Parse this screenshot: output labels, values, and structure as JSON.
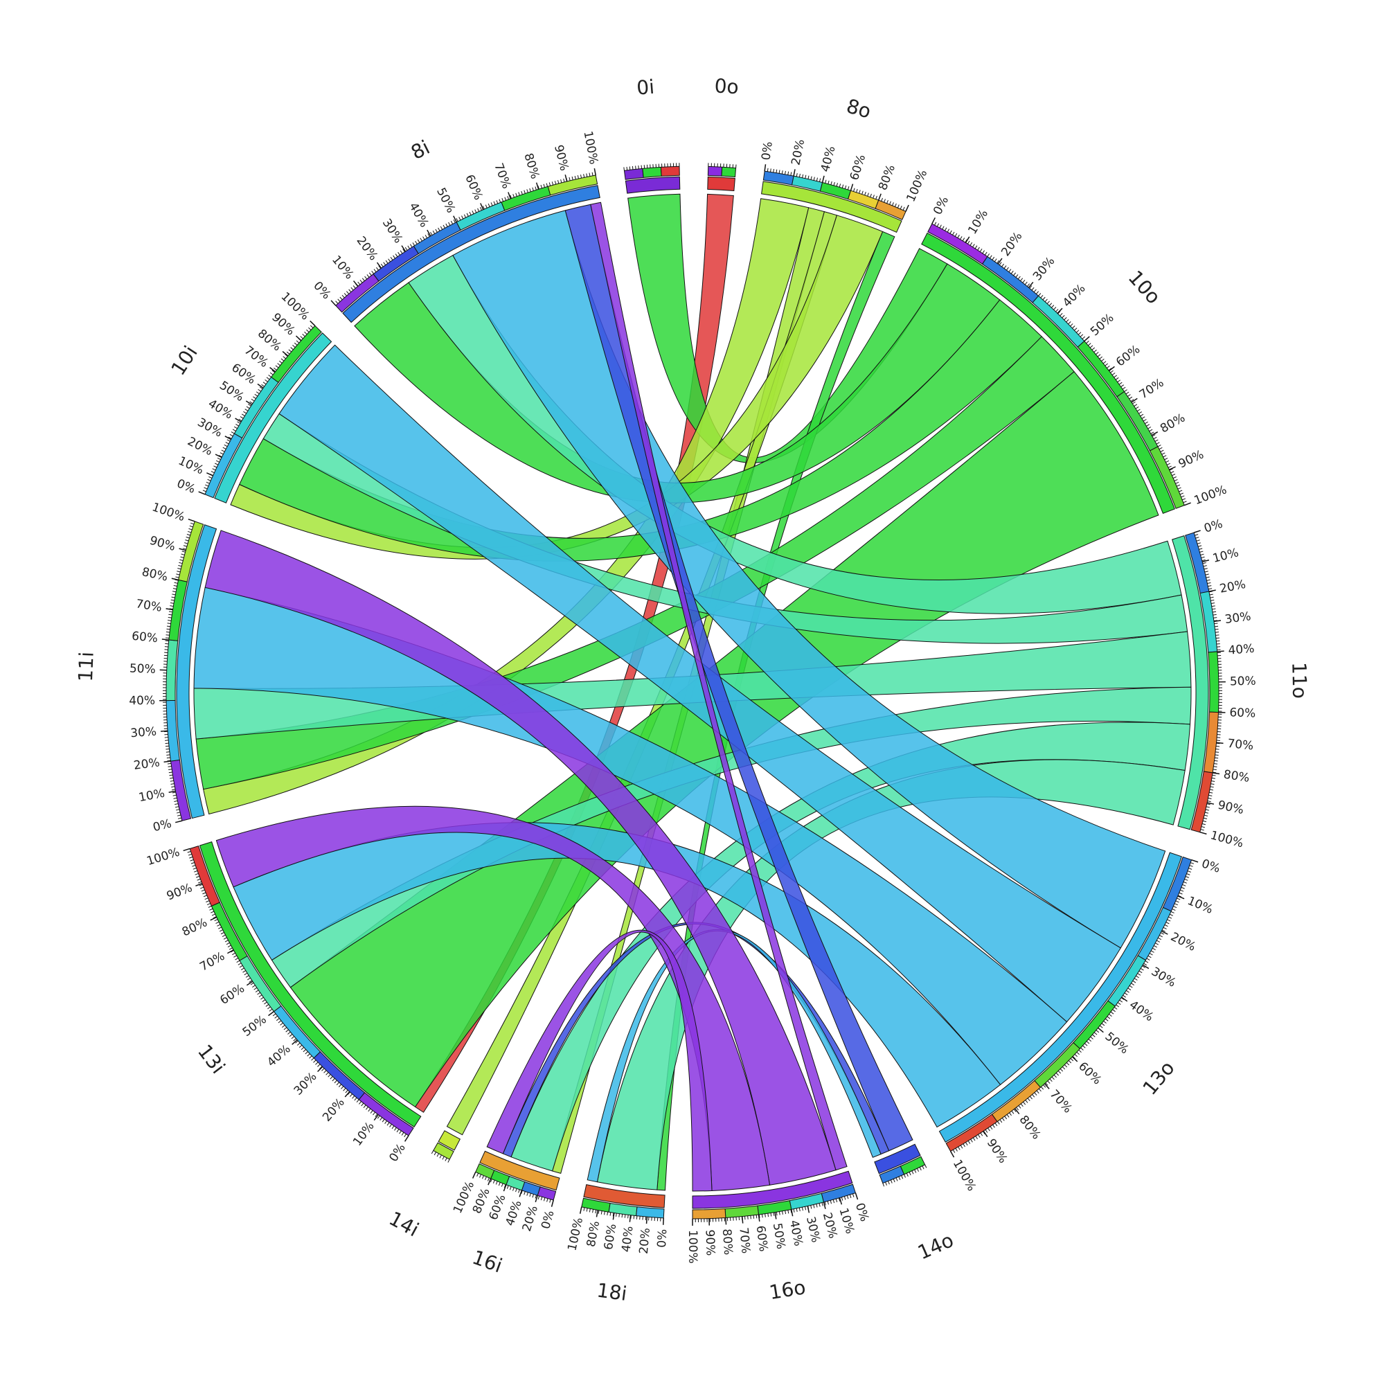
{
  "diagram": {
    "type": "circos-migration",
    "segments": [
      {
        "id": "0i",
        "label": "0i",
        "value": 60,
        "color": "#7a2bd6",
        "outer_colors": [
          "#7a2bd6",
          "#2fd83a",
          "#e03a3a"
        ],
        "ticks": []
      },
      {
        "id": "0o",
        "label": "0o",
        "value": 30,
        "color": "#e03a3a",
        "outer_colors": [
          "#8a2be2",
          "#2fd83a"
        ],
        "ticks": []
      },
      {
        "id": "8o",
        "label": "8o",
        "value": 160,
        "color": "#a6e53a",
        "outer_colors": [
          "#2f7fe0",
          "#36d4cf",
          "#2fd83a",
          "#e8d034",
          "#e8a034"
        ],
        "ticks": [
          "0%",
          "20%",
          "40%",
          "60%",
          "80%",
          "100%"
        ]
      },
      {
        "id": "10o",
        "label": "10o",
        "value": 420,
        "color": "#2fd83a",
        "outer_colors": [
          "#9b2be2",
          "#2f7fe0",
          "#36d4cf",
          "#2fd83a",
          "#43d34a",
          "#5fd83a"
        ],
        "ticks": [
          "0%",
          "10%",
          "20%",
          "30%",
          "40%",
          "50%",
          "60%",
          "70%",
          "80%",
          "90%",
          "100%"
        ]
      },
      {
        "id": "11o",
        "label": "11o",
        "value": 330,
        "color": "#4fe3a8",
        "outer_colors": [
          "#2f7fe0",
          "#36d4cf",
          "#2fd83a",
          "#e88a34",
          "#e04a34"
        ],
        "ticks": [
          "0%",
          "10%",
          "20%",
          "30%",
          "40%",
          "50%",
          "60%",
          "70%",
          "80%",
          "90%",
          "100%"
        ]
      },
      {
        "id": "13o",
        "label": "13o",
        "value": 420,
        "color": "#3ab9e8",
        "outer_colors": [
          "#2f7fe0",
          "#3ab9e8",
          "#36d4cf",
          "#2fd83a",
          "#5fd83a",
          "#e8a034",
          "#e04a34"
        ],
        "ticks": [
          "0%",
          "10%",
          "20%",
          "30%",
          "40%",
          "50%",
          "60%",
          "70%",
          "80%",
          "90%",
          "100%"
        ]
      },
      {
        "id": "14o",
        "label": "14o",
        "value": 50,
        "color": "#3a50e0",
        "outer_colors": [
          "#2fd83a",
          "#2f7fe0"
        ],
        "ticks": []
      },
      {
        "id": "16o",
        "label": "16o",
        "value": 180,
        "color": "#8a35e0",
        "outer_colors": [
          "#2f7fe0",
          "#36d4cf",
          "#2fd83a",
          "#5fd83a",
          "#e8a034"
        ],
        "ticks": [
          "0%",
          "10%",
          "20%",
          "30%",
          "40%",
          "50%",
          "60%",
          "70%",
          "80%",
          "90%",
          "100%"
        ]
      },
      {
        "id": "18i",
        "label": "18i",
        "value": 90,
        "color": "#e05a34",
        "outer_colors": [
          "#3ab9e8",
          "#4fe3a8",
          "#2fd83a"
        ],
        "ticks": [
          "0%",
          "20%",
          "40%",
          "60%",
          "80%",
          "100%"
        ]
      },
      {
        "id": "16i",
        "label": "16i",
        "value": 90,
        "color": "#e8a034",
        "outer_colors": [
          "#8a35e0",
          "#2f7fe0",
          "#4fe3a8",
          "#2fd83a",
          "#5fd83a"
        ],
        "ticks": [
          "0%",
          "20%",
          "40%",
          "60%",
          "80%",
          "100%"
        ]
      },
      {
        "id": "14i",
        "label": "14i",
        "value": 20,
        "color": "#c7e83a",
        "outer_colors": [
          "#a6e53a"
        ],
        "ticks": []
      },
      {
        "id": "13i",
        "label": "13i",
        "value": 400,
        "color": "#2fd83a",
        "outer_colors": [
          "#8a35e0",
          "#3a50e0",
          "#3ab9e8",
          "#4fe3a8",
          "#2fd83a",
          "#e03a3a"
        ],
        "ticks": [
          "0%",
          "10%",
          "20%",
          "30%",
          "40%",
          "50%",
          "60%",
          "70%",
          "80%",
          "90%",
          "100%"
        ]
      },
      {
        "id": "11i",
        "label": "11i",
        "value": 330,
        "color": "#3ab9e8",
        "outer_colors": [
          "#8a35e0",
          "#3ab9e8",
          "#4fe3a8",
          "#2fd83a",
          "#a6e53a"
        ],
        "ticks": [
          "0%",
          "10%",
          "20%",
          "30%",
          "40%",
          "50%",
          "60%",
          "70%",
          "80%",
          "90%",
          "100%"
        ]
      },
      {
        "id": "10i",
        "label": "10i",
        "value": 220,
        "color": "#36d4cf",
        "outer_colors": [
          "#3ab9e8",
          "#36d4cf",
          "#2fd83a"
        ],
        "ticks": [
          "0%",
          "10%",
          "20%",
          "30%",
          "40%",
          "50%",
          "60%",
          "70%",
          "80%",
          "90%",
          "100%"
        ]
      },
      {
        "id": "8i",
        "label": "8i",
        "value": 320,
        "color": "#2f7fe0",
        "outer_colors": [
          "#8a35e0",
          "#3a50e0",
          "#2f7fe0",
          "#36d4cf",
          "#2fd83a",
          "#a6e53a"
        ],
        "ticks": [
          "0%",
          "10%",
          "20%",
          "30%",
          "40%",
          "50%",
          "60%",
          "70%",
          "80%",
          "90%",
          "100%"
        ]
      }
    ],
    "flows": [
      {
        "from": "0o",
        "to": "13i",
        "value": 12,
        "color": "#e03a3a"
      },
      {
        "from": "0i",
        "to": "10o",
        "value": 40,
        "color": "#2fd83a"
      },
      {
        "from": "8o",
        "to": "11i",
        "value": 30,
        "color": "#a6e53a"
      },
      {
        "from": "8o",
        "to": "16i",
        "value": 10,
        "color": "#a6e53a"
      },
      {
        "from": "8o",
        "to": "14i",
        "value": 8,
        "color": "#a6e53a"
      },
      {
        "from": "8o",
        "to": "10i",
        "value": 30,
        "color": "#a6e53a"
      },
      {
        "from": "8o",
        "to": "18i",
        "value": 8,
        "color": "#2fd83a"
      },
      {
        "from": "10o",
        "to": "8i",
        "value": 80,
        "color": "#2fd83a"
      },
      {
        "from": "10o",
        "to": "10i",
        "value": 70,
        "color": "#2fd83a"
      },
      {
        "from": "10o",
        "to": "11i",
        "value": 60,
        "color": "#2fd83a"
      },
      {
        "from": "10o",
        "to": "13i",
        "value": 210,
        "color": "#2fd83a"
      },
      {
        "from": "11o",
        "to": "8i",
        "value": 60,
        "color": "#4fe3a8"
      },
      {
        "from": "11o",
        "to": "10i",
        "value": 40,
        "color": "#4fe3a8"
      },
      {
        "from": "11o",
        "to": "11i",
        "value": 60,
        "color": "#4fe3a8"
      },
      {
        "from": "11o",
        "to": "13i",
        "value": 40,
        "color": "#4fe3a8"
      },
      {
        "from": "11o",
        "to": "16i",
        "value": 50,
        "color": "#4fe3a8"
      },
      {
        "from": "11o",
        "to": "18i",
        "value": 60,
        "color": "#4fe3a8"
      },
      {
        "from": "13o",
        "to": "8i",
        "value": 140,
        "color": "#3ab9e8"
      },
      {
        "from": "13o",
        "to": "10i",
        "value": 120,
        "color": "#3ab9e8"
      },
      {
        "from": "13o",
        "to": "11i",
        "value": 120,
        "color": "#3ab9e8"
      },
      {
        "from": "13o",
        "to": "13i",
        "value": 100,
        "color": "#3ab9e8"
      },
      {
        "from": "14o",
        "to": "8i",
        "value": 30,
        "color": "#3a50e0"
      },
      {
        "from": "14o",
        "to": "16i",
        "value": 10,
        "color": "#3a50e0"
      },
      {
        "from": "14o",
        "to": "18i",
        "value": 10,
        "color": "#3ab9e8"
      },
      {
        "from": "16o",
        "to": "8i",
        "value": 12,
        "color": "#8a35e0"
      },
      {
        "from": "16o",
        "to": "11i",
        "value": 70,
        "color": "#8a35e0"
      },
      {
        "from": "16o",
        "to": "13i",
        "value": 60,
        "color": "#8a35e0"
      },
      {
        "from": "16o",
        "to": "16i",
        "value": 20,
        "color": "#8a35e0"
      }
    ]
  }
}
